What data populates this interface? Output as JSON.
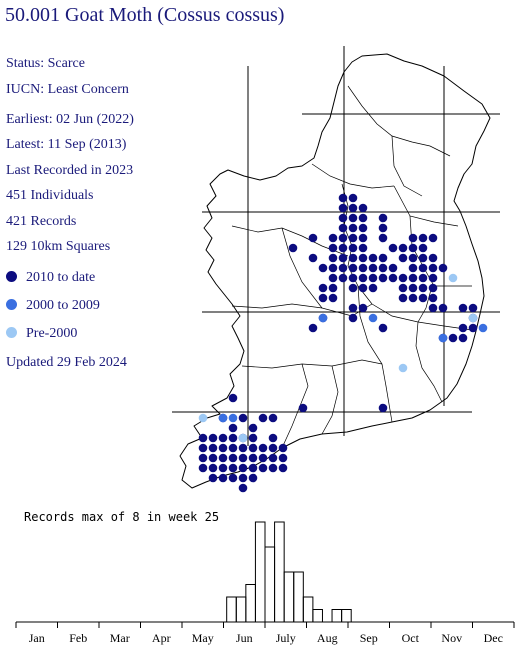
{
  "title": "50.001 Goat Moth (Cossus cossus)",
  "info": {
    "status": "Status: Scarce",
    "iucn": "IUCN: Least Concern",
    "earliest": "Earliest: 02 Jun (2022)",
    "latest": "Latest: 11 Sep (2013)",
    "last_recorded": "Last Recorded in 2023",
    "individuals": "451 Individuals",
    "records": "421 Records",
    "squares": "129 10km Squares"
  },
  "legend": [
    {
      "label": "2010 to date",
      "color": "#0c0c80"
    },
    {
      "label": "2000 to 2009",
      "color": "#3a6fe0"
    },
    {
      "label": "Pre-2000",
      "color": "#9cc8f4"
    }
  ],
  "updated": "Updated 29 Feb 2024",
  "histogram": {
    "title": "Records max of 8 in week 25",
    "max": 8,
    "months": [
      "Jan",
      "Feb",
      "Mar",
      "Apr",
      "May",
      "Jun",
      "July",
      "Aug",
      "Sep",
      "Oct",
      "Nov",
      "Dec"
    ],
    "weekly_values": [
      0,
      0,
      0,
      0,
      0,
      0,
      0,
      0,
      0,
      0,
      0,
      0,
      0,
      0,
      0,
      0,
      0,
      0,
      0,
      0,
      0,
      0,
      2,
      2,
      3,
      8,
      6,
      8,
      4,
      4,
      2,
      1,
      0,
      1,
      1,
      0,
      0,
      0,
      0,
      0,
      0,
      0,
      0,
      0,
      0,
      0,
      0,
      0,
      0,
      0,
      0,
      0
    ]
  },
  "map_colors": {
    "recent": "#0c0c80",
    "mid": "#3a6fe0",
    "old": "#9cc8f4"
  }
}
